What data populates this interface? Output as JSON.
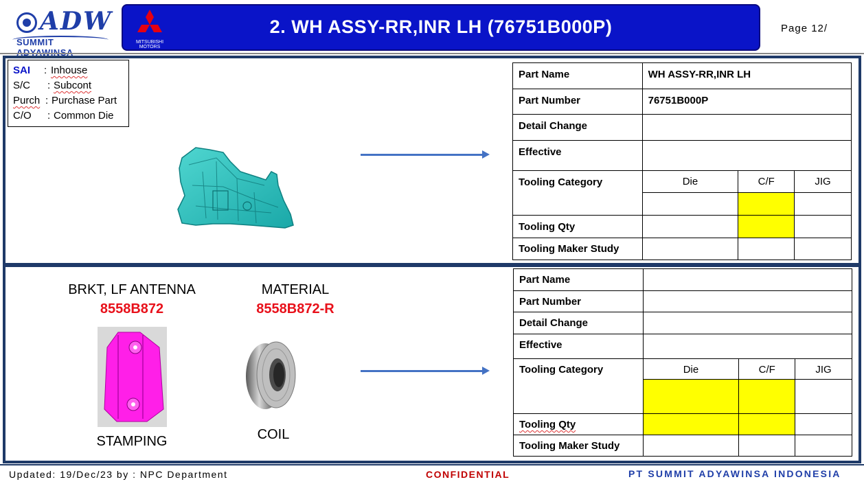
{
  "header": {
    "logo_text": "ADW",
    "logo_subtitle": "SUMMIT ADYAWINSA",
    "mitsubishi_label": "MITSUBISHI MOTORS",
    "title": "2. WH ASSY-RR,INR LH (76751B000P)",
    "page": "Page 12/"
  },
  "legend": [
    {
      "code": "SAI",
      "sep": ":",
      "desc": "Inhouse"
    },
    {
      "code": "S/C",
      "sep": ":",
      "desc": "Subcont"
    },
    {
      "code": "Purch",
      "sep": ":",
      "desc": "Purchase Part"
    },
    {
      "code": "C/O",
      "sep": ":",
      "desc": "Common Die"
    }
  ],
  "table1": {
    "part_name_label": "Part Name",
    "part_name_value": "WH ASSY-RR,INR LH",
    "part_number_label": "Part Number",
    "part_number_value": "76751B000P",
    "detail_change_label": "Detail Change",
    "effective_label": "Effective",
    "tooling_category_label": "Tooling Category",
    "col_die": "Die",
    "col_cf": "C/F",
    "col_jig": "JIG",
    "tooling_qty_label": "Tooling Qty",
    "tooling_maker_label": "Tooling Maker Study"
  },
  "component": {
    "part_label": "BRKT, LF ANTENNA",
    "part_number": "8558B872",
    "process": "STAMPING",
    "material_label": "MATERIAL",
    "material_number": "8558B872-R",
    "material_type": "COIL"
  },
  "table2": {
    "part_name_label": "Part Name",
    "part_number_label": "Part Number",
    "detail_change_label": "Detail Change",
    "effective_label": "Effective",
    "tooling_category_label": "Tooling Category",
    "col_die": "Die",
    "col_cf": "C/F",
    "col_jig": "JIG",
    "tooling_qty_label": "Tooling Qty",
    "tooling_maker_label": "Tooling Maker Study"
  },
  "footer": {
    "updated": "Updated: 19/Dec/23 by : NPC Department",
    "confidential": "CONFIDENTIAL",
    "company": "PT SUMMIT ADYAWINSA INDONESIA"
  },
  "colors": {
    "title_bar": "#0a14c8",
    "highlight": "#ffff00",
    "part_number_red": "#e8101a",
    "panel_border": "#1f3a68",
    "arrow": "#4472c4"
  }
}
